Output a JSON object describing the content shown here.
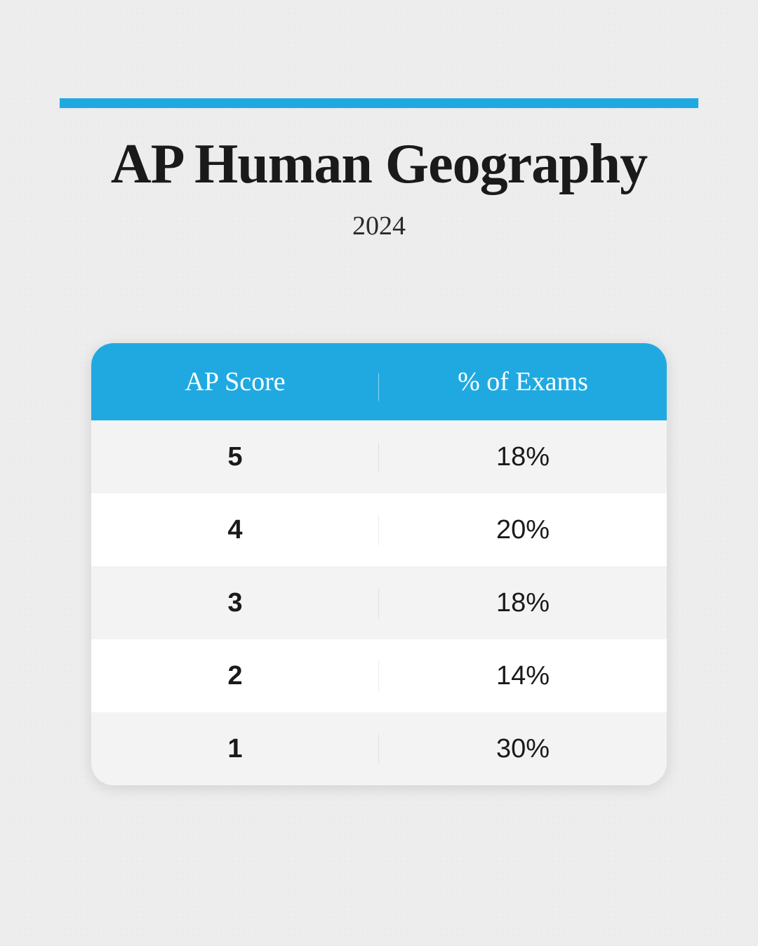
{
  "header": {
    "title": "AP Human Geography",
    "year": "2024",
    "accent_color": "#20a9e1"
  },
  "table": {
    "type": "table",
    "header_bg": "#20a9e1",
    "header_text_color": "#ffffff",
    "row_alt_bg": "#f3f3f3",
    "row_bg": "#ffffff",
    "border_radius": 32,
    "columns": [
      "AP Score",
      "% of Exams"
    ],
    "rows": [
      {
        "score": "5",
        "pct": "18%"
      },
      {
        "score": "4",
        "pct": "20%"
      },
      {
        "score": "3",
        "pct": "18%"
      },
      {
        "score": "2",
        "pct": "14%"
      },
      {
        "score": "1",
        "pct": "30%"
      }
    ],
    "header_fontsize": 38,
    "cell_fontsize": 38
  },
  "page": {
    "background_color": "#ededed",
    "title_fontsize": 80,
    "year_fontsize": 38
  }
}
